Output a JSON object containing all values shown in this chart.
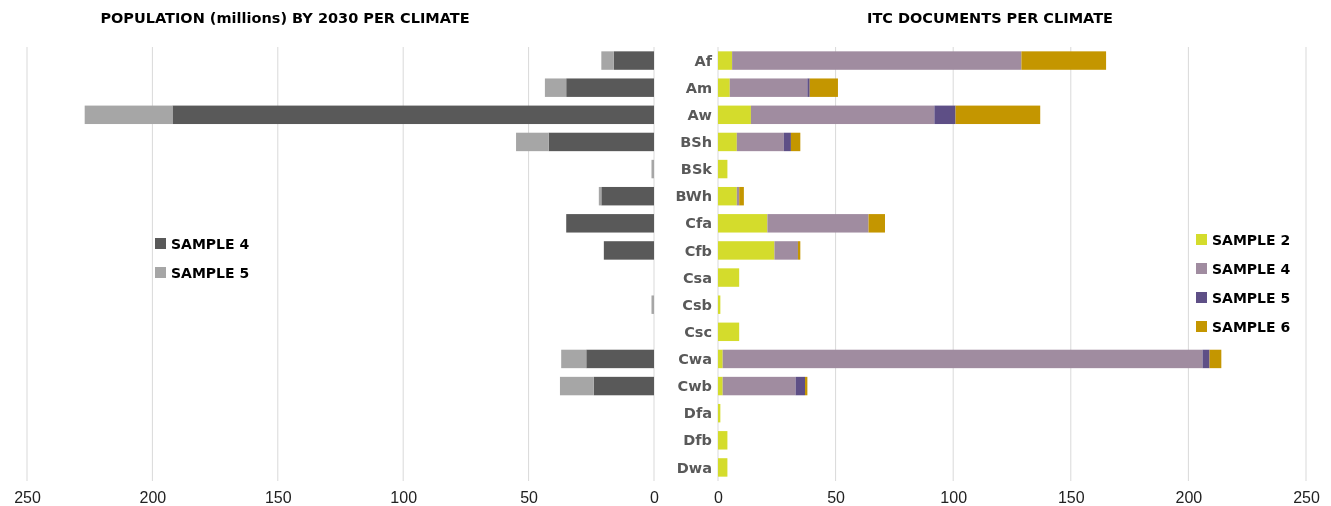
{
  "chart_data": [
    {
      "type": "bar",
      "title": "POPULATION (millions) BY 2030 PER CLIMATE",
      "orientation": "horizontal",
      "stacked": true,
      "categories": [
        null,
        null,
        null,
        null,
        null,
        null,
        null,
        null,
        null,
        null,
        null,
        null,
        null,
        null,
        null,
        null
      ],
      "series": [
        {
          "name": "SAMPLE 4",
          "color": "#595959",
          "values": [
            16,
            35,
            192,
            42,
            0,
            21,
            35,
            20,
            0,
            0,
            0,
            27,
            24,
            0,
            0,
            0
          ]
        },
        {
          "name": "SAMPLE 5",
          "color": "#a6a6a6",
          "values": [
            5,
            8.5,
            35,
            13,
            1,
            1,
            0,
            0,
            0,
            1,
            0,
            10,
            13.5,
            0,
            0,
            0
          ]
        }
      ],
      "xlim": [
        250,
        0
      ],
      "xticks": [
        250,
        200,
        150,
        100,
        50,
        0
      ],
      "grid": "x",
      "legend": "left",
      "tick_labels": "x"
    },
    {
      "type": "bar",
      "title": "ITC DOCUMENTS PER CLIMATE",
      "orientation": "horizontal",
      "stacked": true,
      "categories": [
        "Af",
        "Am",
        "Aw",
        "BSh",
        "BSk",
        "BWh",
        "Cfa",
        "Cfb",
        "Csa",
        "Csb",
        "Csc",
        "Cwa",
        "Cwb",
        "Dfa",
        "Dfb",
        "Dwa"
      ],
      "series": [
        {
          "name": "SAMPLE 2",
          "color": "#d4dc2c",
          "values": [
            6,
            5,
            14,
            8,
            4,
            8,
            21,
            24,
            9,
            1,
            9,
            2,
            2,
            1,
            4,
            4
          ]
        },
        {
          "name": "SAMPLE 4",
          "color": "#a08ca0",
          "values": [
            123,
            33,
            78,
            20,
            0,
            1,
            43,
            10,
            0,
            0,
            0,
            204,
            31,
            0,
            0,
            0
          ]
        },
        {
          "name": "SAMPLE 5",
          "color": "#5e4f86",
          "values": [
            0,
            1,
            9,
            3,
            0,
            0,
            0,
            0,
            0,
            0,
            0,
            3,
            4,
            0,
            0,
            0
          ]
        },
        {
          "name": "SAMPLE 6",
          "color": "#c49600",
          "values": [
            36,
            12,
            36,
            4,
            0,
            2,
            7,
            1,
            0,
            0,
            0,
            5,
            1,
            0,
            0,
            0
          ]
        }
      ],
      "xlim": [
        0,
        250
      ],
      "xticks": [
        0,
        50,
        100,
        150,
        200,
        250
      ],
      "grid": "x",
      "legend": "right"
    }
  ]
}
